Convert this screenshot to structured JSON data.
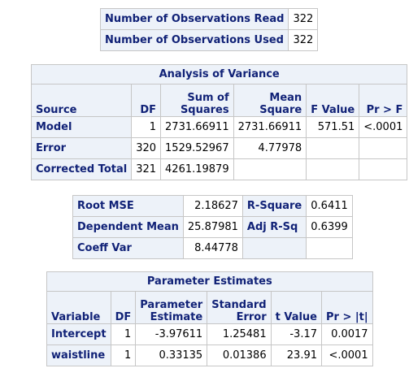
{
  "obs": {
    "rows": [
      {
        "label": "Number of Observations Read",
        "value": "322"
      },
      {
        "label": "Number of Observations Used",
        "value": "322"
      }
    ]
  },
  "anova": {
    "title": "Analysis of Variance",
    "headers": {
      "source": "Source",
      "df": "DF",
      "ss_line1": "Sum of",
      "ss_line2": "Squares",
      "ms_line1": "Mean",
      "ms_line2": "Square",
      "f": "F Value",
      "p": "Pr > F"
    },
    "rows": [
      {
        "source": "Model",
        "df": "1",
        "ss": "2731.66911",
        "ms": "2731.66911",
        "f": "571.51",
        "p": "<.0001"
      },
      {
        "source": "Error",
        "df": "320",
        "ss": "1529.52967",
        "ms": "4.77978",
        "f": "",
        "p": ""
      },
      {
        "source": "Corrected Total",
        "df": "321",
        "ss": "4261.19879",
        "ms": "",
        "f": "",
        "p": ""
      }
    ]
  },
  "fit": {
    "rows": [
      {
        "label1": "Root MSE",
        "value1": "2.18627",
        "label2": "R-Square",
        "value2": "0.6411"
      },
      {
        "label1": "Dependent Mean",
        "value1": "25.87981",
        "label2": "Adj R-Sq",
        "value2": "0.6399"
      },
      {
        "label1": "Coeff Var",
        "value1": "8.44778",
        "label2": "",
        "value2": ""
      }
    ]
  },
  "params": {
    "title": "Parameter Estimates",
    "headers": {
      "variable": "Variable",
      "df": "DF",
      "est_line1": "Parameter",
      "est_line2": "Estimate",
      "se_line1": "Standard",
      "se_line2": "Error",
      "t": "t Value",
      "p": "Pr > |t|"
    },
    "rows": [
      {
        "variable": "Intercept",
        "df": "1",
        "est": "-3.97611",
        "se": "1.25481",
        "t": "-3.17",
        "p": "0.0017"
      },
      {
        "variable": "waistline",
        "df": "1",
        "est": "0.33135",
        "se": "0.01386",
        "t": "23.91",
        "p": "<.0001"
      }
    ]
  }
}
